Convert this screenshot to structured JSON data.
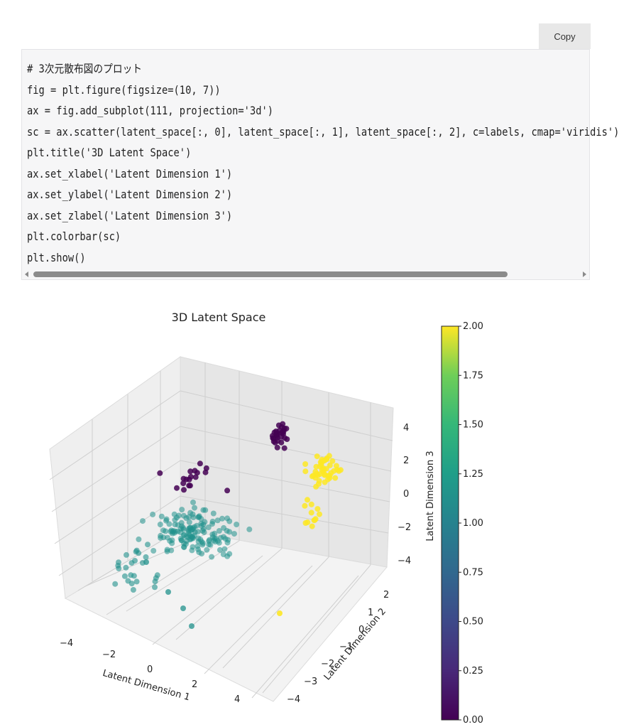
{
  "copy_button": {
    "label": "Copy"
  },
  "code": {
    "lines": [
      "# 3次元散布図のプロット",
      "fig = plt.figure(figsize=(10, 7))",
      "ax = fig.add_subplot(111, projection='3d')",
      "sc = ax.scatter(latent_space[:, 0], latent_space[:, 1], latent_space[:, 2], c=labels, cmap='viridis')",
      "plt.title('3D Latent Space')",
      "ax.set_xlabel('Latent Dimension 1')",
      "ax.set_ylabel('Latent Dimension 2')",
      "ax.set_zlabel('Latent Dimension 3')",
      "plt.colorbar(sc)",
      "plt.show()"
    ]
  },
  "chart_data": {
    "type": "scatter",
    "title": "3D Latent Space",
    "xlabel": "Latent Dimension 1",
    "ylabel": "Latent Dimension 2",
    "zlabel": "Latent Dimension 3",
    "x_ticks": [
      "−4",
      "−2",
      "0",
      "2",
      "4"
    ],
    "y_ticks": [
      "−4",
      "−3",
      "−2",
      "−1",
      "0",
      "1",
      "2"
    ],
    "z_ticks": [
      "−4",
      "−2",
      "0",
      "2",
      "4"
    ],
    "colorbar": {
      "colormap": "viridis",
      "ticks": [
        "0.00",
        "0.25",
        "0.50",
        "0.75",
        "1.00",
        "1.25",
        "1.50",
        "1.75",
        "2.00"
      ],
      "range": [
        0,
        2
      ]
    },
    "grid": true,
    "colors": {
      "0": "#440154",
      "1": "#21918c",
      "2": "#fde725"
    }
  }
}
